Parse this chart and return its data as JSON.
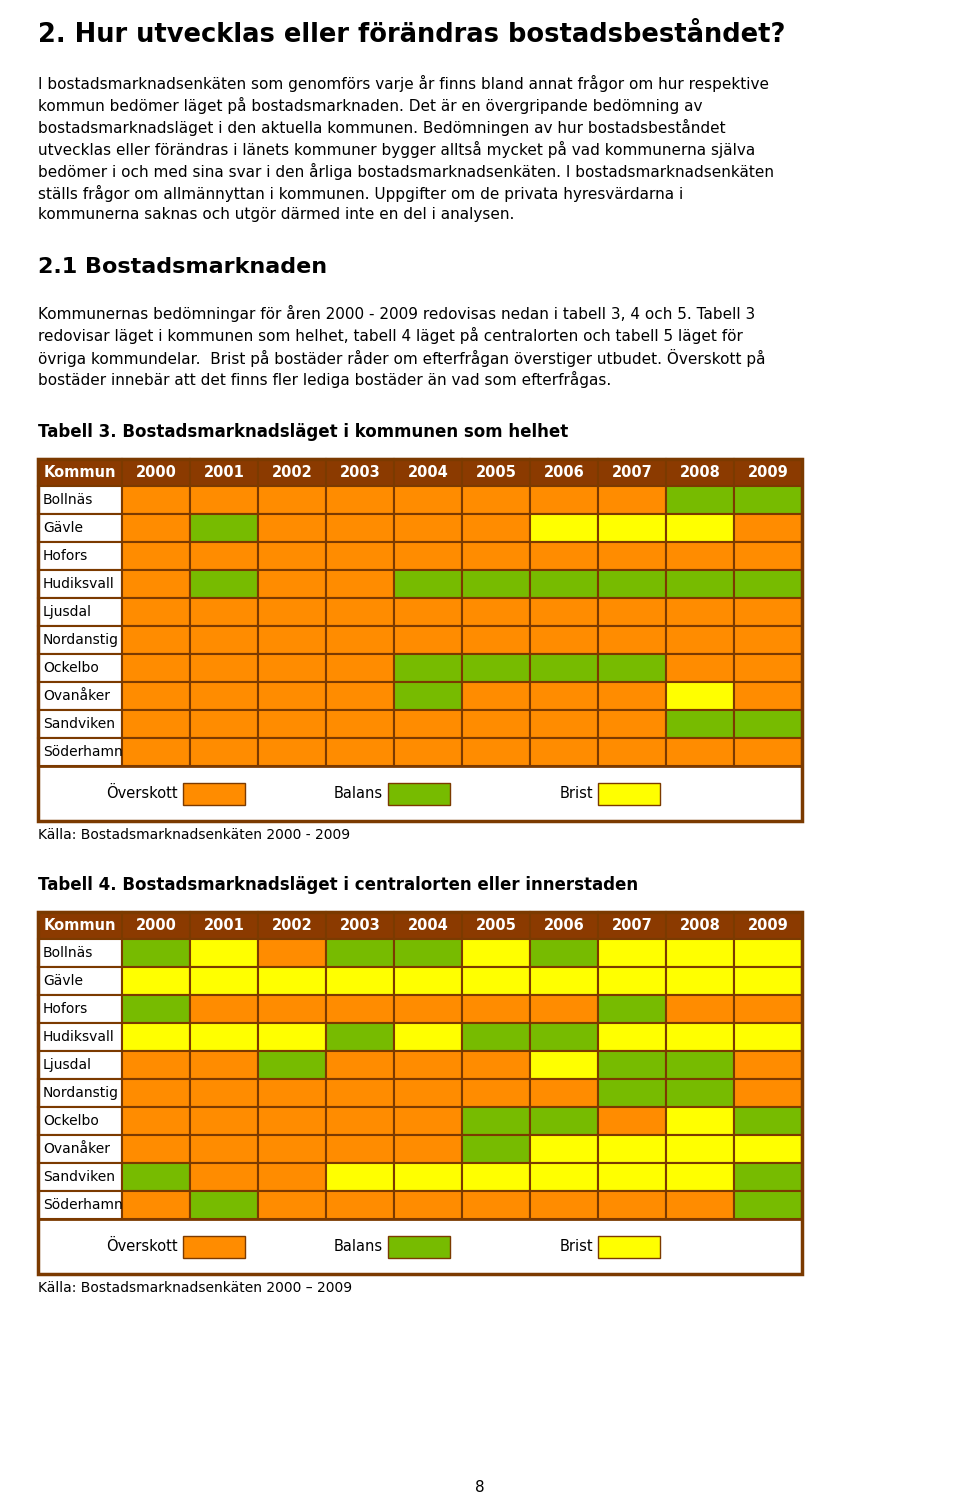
{
  "title": "2. Hur utvecklas eller förändras bostadsbeståndet?",
  "section_title": "2.1 Bostadsmarknaden",
  "source1": "Källa: Bostadsmarknadsenkäten 2000 - 2009",
  "source2": "Källa: Bostadsmarknadsenkäten 2000 – 2009",
  "page_number": "8",
  "commune_labels": [
    "Bollnäs",
    "Gävle",
    "Hofors",
    "Hudiksvall",
    "Ljusdal",
    "Nordanstig",
    "Ockelbo",
    "Ovanåker",
    "Sandviken",
    "Söderhamn"
  ],
  "years": [
    "2000",
    "2001",
    "2002",
    "2003",
    "2004",
    "2005",
    "2006",
    "2007",
    "2008",
    "2009"
  ],
  "orange": "#FF8C00",
  "green": "#77BB00",
  "yellow": "#FFFF00",
  "header_bg": "#8B3A00",
  "border_color": "#7B3A00",
  "table1_title": "Tabell 3. Bostadsmarknadsläget i kommunen som helhet",
  "table2_title": "Tabell 4. Bostadsmarknadsläget i centralorten eller innerstaden",
  "table1_data": [
    [
      "O",
      "O",
      "O",
      "O",
      "O",
      "O",
      "O",
      "O",
      "G",
      "G"
    ],
    [
      "O",
      "G",
      "O",
      "O",
      "O",
      "O",
      "Y",
      "Y",
      "Y",
      "O"
    ],
    [
      "O",
      "O",
      "O",
      "O",
      "O",
      "O",
      "O",
      "O",
      "O",
      "O"
    ],
    [
      "O",
      "G",
      "O",
      "O",
      "G",
      "G",
      "G",
      "G",
      "G",
      "G"
    ],
    [
      "O",
      "O",
      "O",
      "O",
      "O",
      "O",
      "O",
      "O",
      "O",
      "O"
    ],
    [
      "O",
      "O",
      "O",
      "O",
      "O",
      "O",
      "O",
      "O",
      "O",
      "O"
    ],
    [
      "O",
      "O",
      "O",
      "O",
      "G",
      "G",
      "G",
      "G",
      "O",
      "O"
    ],
    [
      "O",
      "O",
      "O",
      "O",
      "G",
      "O",
      "O",
      "O",
      "Y",
      "O"
    ],
    [
      "O",
      "O",
      "O",
      "O",
      "O",
      "O",
      "O",
      "O",
      "G",
      "G"
    ],
    [
      "O",
      "O",
      "O",
      "O",
      "O",
      "O",
      "O",
      "O",
      "O",
      "O"
    ]
  ],
  "table2_data": [
    [
      "G",
      "Y",
      "O",
      "G",
      "G",
      "Y",
      "G",
      "Y",
      "Y",
      "Y"
    ],
    [
      "Y",
      "Y",
      "Y",
      "Y",
      "Y",
      "Y",
      "Y",
      "Y",
      "Y",
      "Y"
    ],
    [
      "G",
      "O",
      "O",
      "O",
      "O",
      "O",
      "O",
      "G",
      "O",
      "O"
    ],
    [
      "Y",
      "Y",
      "Y",
      "G",
      "Y",
      "G",
      "G",
      "Y",
      "Y",
      "Y"
    ],
    [
      "O",
      "O",
      "G",
      "O",
      "O",
      "O",
      "Y",
      "G",
      "G",
      "O"
    ],
    [
      "O",
      "O",
      "O",
      "O",
      "O",
      "O",
      "O",
      "G",
      "G",
      "O"
    ],
    [
      "O",
      "O",
      "O",
      "O",
      "O",
      "G",
      "G",
      "O",
      "Y",
      "G"
    ],
    [
      "O",
      "O",
      "O",
      "O",
      "O",
      "G",
      "Y",
      "Y",
      "Y",
      "Y"
    ],
    [
      "G",
      "O",
      "O",
      "Y",
      "Y",
      "Y",
      "Y",
      "Y",
      "Y",
      "G"
    ],
    [
      "O",
      "G",
      "O",
      "O",
      "O",
      "O",
      "O",
      "O",
      "O",
      "G"
    ]
  ],
  "legend_overskott": "Överskott",
  "legend_balans": "Balans",
  "legend_brist": "Brist",
  "para1": "I bostadsmarknadsenkäten som genomförs varje år finns bland annat frågor om hur respektive kommun bedömer läget på bostadsmarknaden. Det är en övergripande bedömning av bostadsmarknadsläget i den aktuella kommunen. Bedömningen av hur bostadsbeståndet utvecklas eller förändras i länets kommuner bygger alltså mycket på vad kommunerna själva bedömer i och med sina svar i den årliga bostadsmarknadsenkäten. I bostadsmarknadsenkäten ställs frågor om allmännyttan i kommunen. Uppgifter om de privata hyresvärdarna i kommunerna saknas och utgör därmed inte en del i analysen.",
  "para2": "Kommunernas bedömningar för åren 2000 - 2009 redovisas nedan i tabell 3, 4 och 5. Tabell 3 redovisar läget i kommunen som helhet, tabell 4 läget på centralorten och tabell 5 läget för övriga kommundelar.  Brist på bostäder råder om efterfrågan överstiger utbudet. Överskott på bostäder innebär att det finns fler lediga bostäder än vad som efterfrågas."
}
